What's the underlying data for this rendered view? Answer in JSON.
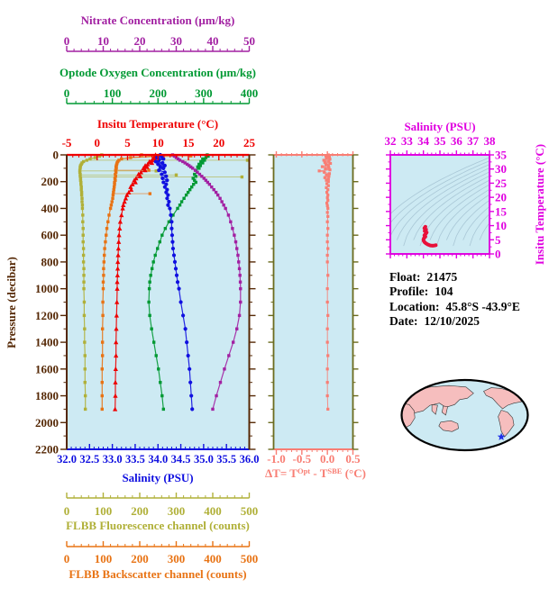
{
  "colors": {
    "nitrate": "#A220A2",
    "oxygen": "#009933",
    "temperature": "#EE0000",
    "salinity": "#1010E0",
    "fluorescence": "#B0B038",
    "backscatter": "#E87314",
    "pressure_axis": "#552805",
    "delta_t": "#F87E74",
    "delta_t_side_axis": "#6B6B1E",
    "ts_magenta": "#E000E0",
    "ts_curve": "#E8103A",
    "contour": "#A9C7D6",
    "panel_bg": "#CDEAF3",
    "info_text": "#000000"
  },
  "labels": {
    "nitrate_title": "Nitrate Concentration (µm/kg)",
    "oxygen_title": "Optode Oxygen Concentration (µm/kg)",
    "temperature_title": "Insitu Temperature (°C)",
    "pressure_label": "Pressure (decibar)",
    "salinity_title": "Salinity (PSU)",
    "fluorescence_title": "FLBB Fluorescence channel (counts)",
    "backscatter_title": "FLBB Backscatter channel (counts)",
    "delta_t_prefix": "ΔT= T",
    "delta_t_sup1": "Opt",
    "delta_t_mid": " - T",
    "delta_t_sup2": "SBE",
    "delta_t_suffix": " (°C)",
    "ts_title": "Salinity (PSU)",
    "ts_right_label": "Insitu Temperature (°C)"
  },
  "info": {
    "lines": [
      {
        "label": "Float:",
        "value": "21475"
      },
      {
        "label": "Profile:",
        "value": "104"
      },
      {
        "label": "Location:",
        "value": "45.8°S  -43.9°E"
      },
      {
        "label": "Date:",
        "value": "12/10/2025"
      }
    ]
  },
  "map": {
    "land_color": "#F6BEBE",
    "ocean_color": "#CDEAF3",
    "outline_color": "#000000",
    "marker_color": "#2030E8",
    "marker_fx": 0.79,
    "marker_fy": 0.81
  },
  "chart_data": [
    {
      "type": "line",
      "id": "profile-panel",
      "ylabel": "Pressure (decibar)",
      "ylim": [
        0,
        2200
      ],
      "yticks": [
        "0",
        "200",
        "400",
        "600",
        "800",
        "1000",
        "1200",
        "1400",
        "1600",
        "1800",
        "2000",
        "2200"
      ],
      "y_minor_per_major": 2,
      "pressures": [
        0,
        10,
        20,
        30,
        40,
        50,
        60,
        70,
        80,
        90,
        100,
        115,
        130,
        145,
        160,
        175,
        190,
        205,
        220,
        240,
        260,
        280,
        300,
        325,
        350,
        375,
        400,
        450,
        500,
        550,
        600,
        650,
        700,
        750,
        800,
        850,
        900,
        950,
        1000,
        1100,
        1200,
        1300,
        1400,
        1500,
        1600,
        1700,
        1800,
        1900
      ],
      "series": [
        {
          "id": "fluorescence",
          "name": "FLBB Fluorescence channel (counts)",
          "color_key": "fluorescence",
          "xlim": [
            0,
            500
          ],
          "xticks": [
            "0",
            "100",
            "200",
            "300",
            "400",
            "500"
          ],
          "x_minor_per_major": 5,
          "marker": "square",
          "values": [
            96,
            90,
            78,
            64,
            55,
            46,
            42,
            40,
            38,
            37,
            37,
            36,
            36,
            37,
            37,
            38,
            38,
            39,
            39,
            40,
            40,
            41,
            41,
            42,
            42,
            43,
            43,
            44,
            44,
            45,
            45,
            45,
            46,
            46,
            46,
            47,
            47,
            47,
            47,
            48,
            48,
            49,
            49,
            50,
            50,
            50,
            51,
            51
          ],
          "spikes": [
            [
              40,
              495
            ],
            [
              120,
              245
            ],
            [
              150,
              300
            ],
            [
              165,
              480
            ]
          ]
        },
        {
          "id": "backscatter",
          "name": "FLBB Backscatter channel (counts)",
          "color_key": "backscatter",
          "xlim": [
            0,
            500
          ],
          "xticks": [
            "0",
            "100",
            "200",
            "300",
            "400",
            "500"
          ],
          "x_minor_per_major": 5,
          "marker": "square",
          "values": [
            205,
            250,
            175,
            150,
            143,
            140,
            138,
            137,
            136,
            135,
            136,
            134,
            135,
            133,
            134,
            132,
            133,
            131,
            131,
            130,
            129,
            128,
            127,
            126,
            124,
            122,
            120,
            116,
            113,
            110,
            108,
            106,
            104,
            103,
            102,
            101,
            101,
            100,
            100,
            99,
            99,
            98,
            98,
            98,
            97,
            97,
            97,
            97
          ],
          "spikes": [
            [
              8,
              340
            ],
            [
              12,
              300
            ],
            [
              115,
              225
            ],
            [
              290,
              228
            ]
          ]
        },
        {
          "id": "oxygen",
          "name": "Optode Oxygen Concentration (µm/kg)",
          "color_key": "oxygen",
          "xlim": [
            0,
            400
          ],
          "xticks": [
            "0",
            "100",
            "200",
            "300",
            "400"
          ],
          "x_minor_per_major": 5,
          "marker": "square",
          "values": [
            308,
            310,
            305,
            298,
            302,
            294,
            298,
            290,
            293,
            287,
            290,
            283,
            286,
            280,
            283,
            277,
            280,
            283,
            278,
            274,
            270,
            266,
            262,
            257,
            252,
            248,
            243,
            233,
            224,
            216,
            209,
            204,
            199,
            194,
            190,
            187,
            184,
            182,
            181,
            180,
            182,
            186,
            191,
            196,
            201,
            205,
            209,
            212
          ]
        },
        {
          "id": "nitrate",
          "name": "Nitrate Concentration (µm/kg)",
          "color_key": "nitrate",
          "xlim": [
            0,
            50
          ],
          "xticks": [
            "0",
            "10",
            "20",
            "30",
            "40",
            "50"
          ],
          "x_minor_per_major": 5,
          "marker": "square",
          "values": [
            29,
            29.5,
            30,
            30.5,
            31,
            31.8,
            32.4,
            33,
            33.5,
            34,
            34.5,
            35.2,
            35.8,
            36.4,
            37,
            37.6,
            38.1,
            38.6,
            39.1,
            39.7,
            40.3,
            40.9,
            41.4,
            42,
            42.5,
            43,
            43.5,
            44.3,
            44.9,
            45.4,
            45.9,
            46.3,
            46.6,
            46.9,
            47.1,
            47.3,
            47.45,
            47.55,
            47.6,
            47.6,
            47.3,
            46.6,
            45.6,
            44.4,
            43.2,
            42.1,
            41,
            40
          ]
        },
        {
          "id": "temperature",
          "name": "Insitu Temperature (°C)",
          "color_key": "temperature",
          "xlim": [
            -5,
            25
          ],
          "xticks": [
            "-5",
            "0",
            "5",
            "10",
            "15",
            "20",
            "25"
          ],
          "x_minor_per_major": 5,
          "marker": "triangle",
          "values": [
            9.6,
            9.5,
            9.3,
            9.5,
            9,
            8.6,
            9,
            8.3,
            7.9,
            8.2,
            7.6,
            7.9,
            7.2,
            6.8,
            7.1,
            6.4,
            6.1,
            6.3,
            5.8,
            5.5,
            5.6,
            5.2,
            4.9,
            4.7,
            4.5,
            4.3,
            4.2,
            4,
            3.8,
            3.7,
            3.6,
            3.55,
            3.5,
            3.45,
            3.4,
            3.38,
            3.35,
            3.3,
            3.3,
            3.25,
            3.2,
            3.15,
            3.1,
            3.1,
            3.05,
            3,
            3,
            2.95
          ]
        },
        {
          "id": "salinity",
          "name": "Salinity (PSU)",
          "color_key": "salinity",
          "xlim": [
            32,
            36
          ],
          "xticks": [
            "32.0",
            "32.5",
            "33.0",
            "33.5",
            "34.0",
            "34.5",
            "35.0",
            "35.5",
            "36.0"
          ],
          "x_minor_per_major": 5,
          "marker": "circle",
          "values": [
            34.05,
            34.08,
            33.98,
            34.12,
            34.02,
            33.95,
            34.1,
            34,
            34.15,
            34.05,
            34.12,
            34.02,
            34.15,
            34.08,
            34.18,
            34.1,
            34.2,
            34.12,
            34.18,
            34.15,
            34.2,
            34.18,
            34.22,
            34.2,
            34.24,
            34.22,
            34.26,
            34.28,
            34.3,
            34.3,
            34.31,
            34.32,
            34.33,
            34.35,
            34.37,
            34.39,
            34.41,
            34.43,
            34.46,
            34.5,
            34.55,
            34.6,
            34.63,
            34.66,
            34.69,
            34.71,
            34.73,
            34.75
          ]
        }
      ]
    },
    {
      "type": "line",
      "id": "delta-t-panel",
      "xlabel": "ΔT= T^Opt - T^SBE (°C)",
      "xlim": [
        -1.0,
        0.5
      ],
      "xticks": [
        "-1.0",
        "-0.5",
        "0.0",
        "0.5"
      ],
      "x_minor_per_major": 5,
      "ylim": [
        0,
        2200
      ],
      "color_key": "delta_t",
      "points": [
        [
          0,
          0.02
        ],
        [
          8,
          -0.03
        ],
        [
          16,
          0.04
        ],
        [
          24,
          -0.02
        ],
        [
          32,
          0.05
        ],
        [
          40,
          -0.07
        ],
        [
          48,
          0.03
        ],
        [
          56,
          -0.05
        ],
        [
          64,
          0.06
        ],
        [
          72,
          -0.03
        ],
        [
          80,
          0.02
        ],
        [
          88,
          -0.1
        ],
        [
          96,
          0.03
        ],
        [
          104,
          -0.04
        ],
        [
          112,
          0.05
        ],
        [
          120,
          -0.16
        ],
        [
          130,
          -0.06
        ],
        [
          140,
          0.04
        ],
        [
          150,
          -0.02
        ],
        [
          160,
          0.03
        ],
        [
          170,
          -0.05
        ],
        [
          180,
          0.02
        ],
        [
          190,
          -0.02
        ],
        [
          200,
          0.02
        ],
        [
          215,
          -0.01
        ],
        [
          230,
          0.02
        ],
        [
          245,
          -0.02
        ],
        [
          260,
          0.01
        ],
        [
          280,
          -0.01
        ],
        [
          300,
          0.01
        ],
        [
          320,
          0
        ],
        [
          340,
          0.01
        ],
        [
          360,
          -0.01
        ],
        [
          380,
          0
        ],
        [
          400,
          0.01
        ],
        [
          430,
          0
        ],
        [
          460,
          0.01
        ],
        [
          500,
          0
        ],
        [
          550,
          0.01
        ],
        [
          600,
          0
        ],
        [
          650,
          0
        ],
        [
          700,
          0.01
        ],
        [
          750,
          0
        ],
        [
          800,
          0
        ],
        [
          900,
          0.01
        ],
        [
          1000,
          0
        ],
        [
          1100,
          0
        ],
        [
          1200,
          0.01
        ],
        [
          1300,
          0
        ],
        [
          1400,
          0
        ],
        [
          1500,
          0.01
        ],
        [
          1600,
          0
        ],
        [
          1700,
          0
        ],
        [
          1800,
          0
        ],
        [
          1900,
          0.01
        ]
      ]
    },
    {
      "type": "scatter",
      "id": "ts-diagram",
      "xlabel": "Salinity (PSU)",
      "ylabel": "Insitu Temperature (°C)",
      "xlim": [
        32,
        38
      ],
      "xticks": [
        "32",
        "33",
        "34",
        "35",
        "36",
        "37",
        "38"
      ],
      "x_minor_per_major": 4,
      "ylim": [
        0,
        35
      ],
      "yticks": [
        "0",
        "5",
        "10",
        "15",
        "20",
        "25",
        "30",
        "35"
      ],
      "y_minor_per_major": 2,
      "color_key": "ts_magenta",
      "curve_color_key": "ts_curve",
      "isopycnal_contours": {
        "count": 14,
        "style": "curved density background lines"
      },
      "points": [
        [
          34.12,
          9.6
        ],
        [
          34.06,
          9.1
        ],
        [
          34.16,
          8.6
        ],
        [
          34.08,
          8.1
        ],
        [
          34.2,
          7.6
        ],
        [
          34.14,
          7.1
        ],
        [
          34.06,
          6.6
        ],
        [
          34.12,
          6.1
        ],
        [
          34.04,
          5.6
        ],
        [
          34,
          5.1
        ],
        [
          34.02,
          4.6
        ],
        [
          34.08,
          4.1
        ],
        [
          34.16,
          3.7
        ],
        [
          34.28,
          3.3
        ],
        [
          34.42,
          3
        ],
        [
          34.56,
          2.9
        ],
        [
          34.68,
          3
        ],
        [
          34.75,
          3.1
        ]
      ]
    }
  ]
}
